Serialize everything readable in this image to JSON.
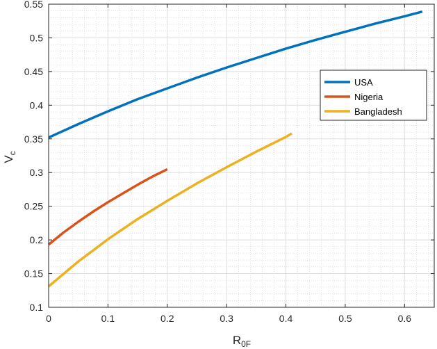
{
  "chart_data": {
    "type": "line",
    "xlabel": "R",
    "xlabel_sub": "0F",
    "ylabel": "V",
    "ylabel_sub": "c",
    "xlim": [
      0,
      0.65
    ],
    "ylim": [
      0.1,
      0.55
    ],
    "x_ticks": [
      0,
      0.1,
      0.2,
      0.3,
      0.4,
      0.5,
      0.6
    ],
    "x_tick_labels": [
      "0",
      "0.1",
      "0.2",
      "0.3",
      "0.4",
      "0.5",
      "0.6"
    ],
    "y_ticks": [
      0.1,
      0.15,
      0.2,
      0.25,
      0.3,
      0.35,
      0.4,
      0.45,
      0.5,
      0.55
    ],
    "y_tick_labels": [
      "0.1",
      "0.15",
      "0.2",
      "0.25",
      "0.3",
      "0.35",
      "0.4",
      "0.45",
      "0.5",
      "0.55"
    ],
    "grid": true,
    "minor_grid": true,
    "legend_position": "right",
    "series": [
      {
        "name": "USA",
        "color": "#0072BD",
        "x": [
          0,
          0.05,
          0.1,
          0.15,
          0.2,
          0.25,
          0.3,
          0.35,
          0.4,
          0.45,
          0.5,
          0.55,
          0.6,
          0.63
        ],
        "y": [
          0.352,
          0.372,
          0.391,
          0.409,
          0.425,
          0.441,
          0.456,
          0.47,
          0.484,
          0.497,
          0.509,
          0.521,
          0.532,
          0.539
        ]
      },
      {
        "name": "Nigeria",
        "color": "#D95319",
        "x": [
          0,
          0.025,
          0.05,
          0.075,
          0.1,
          0.125,
          0.15,
          0.175,
          0.2
        ],
        "y": [
          0.193,
          0.211,
          0.227,
          0.242,
          0.256,
          0.269,
          0.282,
          0.294,
          0.305
        ]
      },
      {
        "name": "Bangladesh",
        "color": "#EDB120",
        "x": [
          0,
          0.05,
          0.1,
          0.15,
          0.2,
          0.25,
          0.3,
          0.35,
          0.4,
          0.41
        ],
        "y": [
          0.131,
          0.168,
          0.201,
          0.231,
          0.258,
          0.284,
          0.308,
          0.331,
          0.353,
          0.358
        ]
      }
    ]
  }
}
